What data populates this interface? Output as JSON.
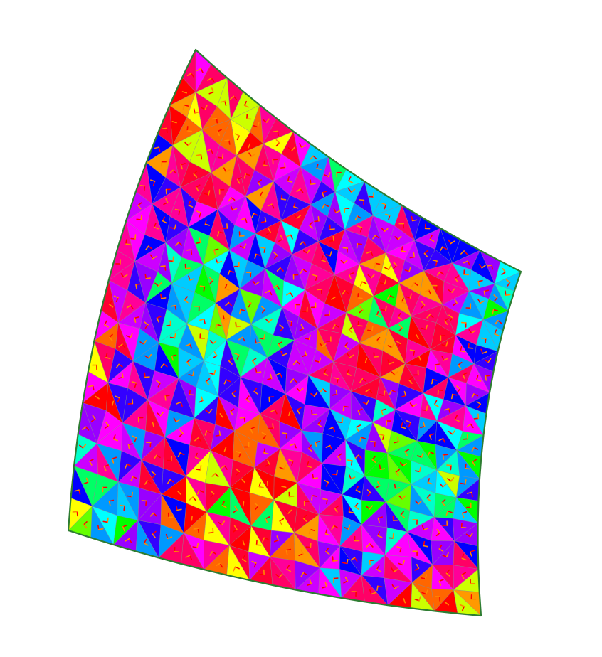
{
  "figure": {
    "description_free": true,
    "mesh": {
      "type": "triangulated-surface",
      "cols": 18,
      "rows": 16,
      "palette": [
        "#ff0000",
        "#ff6600",
        "#ff9900",
        "#ffff00",
        "#ccff00",
        "#66ff00",
        "#00ff00",
        "#00ff66",
        "#00ffcc",
        "#00ffff",
        "#00ccff",
        "#0099ff",
        "#3300ff",
        "#0000ff",
        "#9900ff",
        "#cc00ff",
        "#ff00ff",
        "#ff0099",
        "#ff0066",
        "#ff0033"
      ],
      "grid_line_color": "#8a8a8a",
      "boundary_color": "#2e7d32",
      "tick_colors": [
        "#ff0000",
        "#ff8800"
      ]
    }
  }
}
